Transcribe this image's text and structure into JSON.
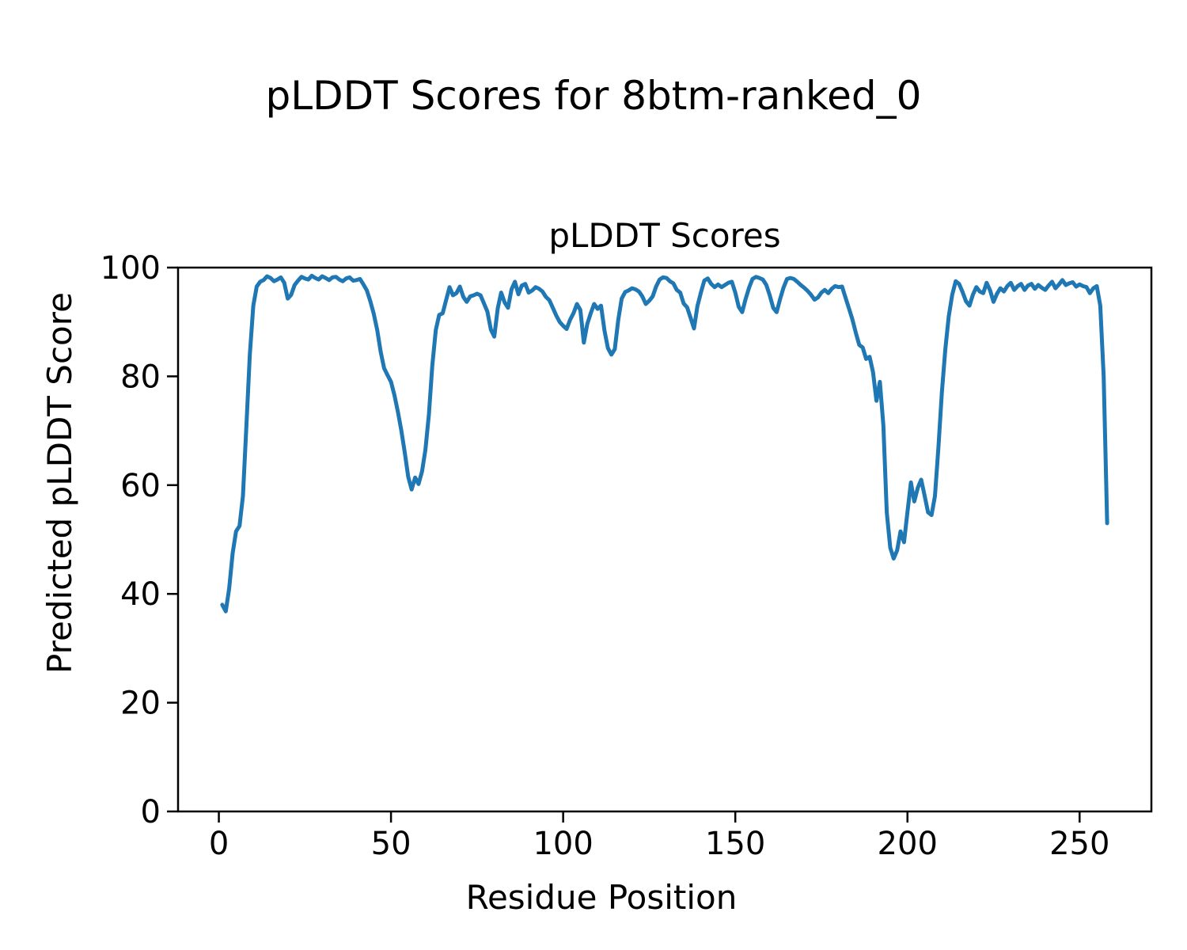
{
  "figure": {
    "suptitle": "pLDDT Scores for 8btm-ranked_0"
  },
  "chart_data": {
    "type": "line",
    "title": "pLDDT Scores",
    "xlabel": "Residue Position",
    "ylabel": "Predicted pLDDT Score",
    "grid": false,
    "legend": false,
    "xlim": [
      -11.85,
      270.85
    ],
    "ylim": [
      0,
      100
    ],
    "x_ticks": [
      0,
      50,
      100,
      150,
      200,
      250
    ],
    "y_ticks": [
      0,
      20,
      40,
      60,
      80,
      100
    ],
    "frame_color": "#000000",
    "text_color": "#000000",
    "series": [
      {
        "name": "pLDDT",
        "color": "#1f77b4",
        "line_width": 5,
        "x_start": 1,
        "values": [
          38,
          36.8,
          41,
          47.5,
          51.5,
          52.5,
          58,
          71,
          84,
          93,
          96.5,
          97.4,
          97.7,
          98.4,
          98.1,
          97.5,
          97.8,
          98.2,
          97.2,
          94.3,
          95.0,
          96.8,
          97.6,
          98.3,
          98.0,
          97.8,
          98.5,
          98.1,
          97.8,
          98.4,
          98.1,
          97.7,
          98.2,
          98.3,
          97.8,
          97.5,
          98.0,
          98.2,
          97.6,
          97.7,
          97.9,
          96.9,
          95.8,
          93.8,
          91.5,
          88.5,
          84.5,
          81.5,
          80.2,
          79.0,
          76.5,
          73.5,
          70.0,
          66.0,
          61.5,
          59.2,
          61.4,
          60.2,
          62.5,
          66.5,
          73.0,
          82.0,
          88.5,
          91.3,
          91.6,
          94.0,
          96.4,
          94.9,
          95.3,
          96.5,
          94.6,
          93.7,
          94.7,
          94.9,
          95.2,
          94.9,
          93.4,
          91.9,
          88.6,
          87.3,
          92.5,
          95.4,
          93.6,
          92.6,
          96.0,
          97.4,
          95.1,
          96.7,
          97.0,
          95.4,
          95.8,
          96.4,
          96.1,
          95.6,
          94.6,
          94.0,
          92.6,
          91.2,
          90.0,
          89.3,
          88.7,
          90.4,
          91.6,
          93.3,
          92.2,
          86.2,
          89.6,
          91.6,
          93.3,
          92.4,
          93.0,
          88.4,
          85.2,
          84.0,
          85.0,
          90.4,
          94.3,
          95.5,
          95.8,
          96.2,
          96.0,
          95.6,
          94.7,
          93.3,
          93.9,
          94.7,
          96.5,
          97.8,
          98.2,
          98.1,
          97.5,
          97.1,
          95.9,
          95.4,
          93.4,
          92.7,
          90.8,
          88.8,
          92.9,
          95.4,
          97.6,
          98.0,
          97.0,
          96.4,
          96.9,
          96.4,
          96.8,
          97.2,
          97.4,
          95.4,
          92.8,
          91.8,
          94.2,
          96.3,
          97.9,
          98.3,
          98.1,
          97.8,
          96.8,
          94.9,
          92.6,
          91.8,
          94.2,
          96.3,
          97.9,
          98.1,
          97.9,
          97.4,
          96.8,
          96.3,
          95.7,
          95.0,
          94.1,
          94.5,
          95.4,
          95.9,
          95.3,
          96.1,
          96.6,
          96.4,
          96.5,
          94.5,
          92.5,
          90.5,
          88.0,
          85.8,
          85.3,
          83.2,
          83.6,
          80.8,
          75.5,
          79.0,
          71.0,
          55.0,
          48.5,
          46.5,
          48.0,
          51.5,
          49.5,
          55.0,
          60.5,
          57.0,
          59.5,
          61.0,
          58.0,
          55.0,
          54.5,
          58.0,
          67.0,
          77.0,
          85.0,
          91.0,
          95.0,
          97.5,
          97.0,
          95.5,
          93.8,
          93.0,
          95.0,
          96.4,
          95.6,
          95.3,
          97.2,
          95.8,
          93.7,
          95.2,
          96.2,
          95.6,
          96.6,
          97.2,
          95.9,
          96.6,
          97.0,
          95.9,
          96.7,
          97.0,
          96.1,
          96.8,
          96.3,
          95.9,
          96.7,
          97.4,
          96.2,
          96.9,
          97.7,
          96.8,
          97.1,
          97.3,
          96.5,
          96.9,
          96.6,
          96.4,
          95.3,
          96.2,
          96.6,
          93.0,
          80.0,
          53.0
        ]
      }
    ]
  }
}
